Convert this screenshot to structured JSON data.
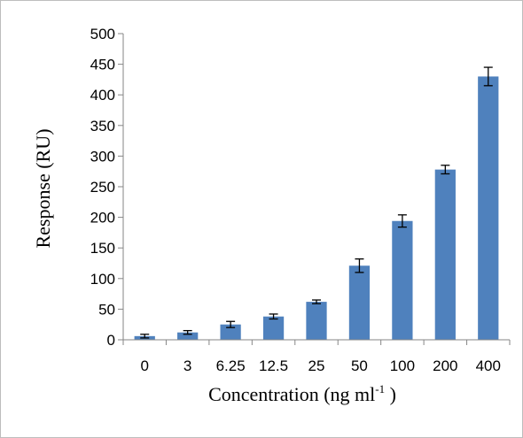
{
  "chart_data": {
    "type": "bar",
    "categories": [
      "0",
      "3",
      "6.25",
      "12.5",
      "25",
      "50",
      "100",
      "200",
      "400"
    ],
    "values": [
      6,
      12,
      25,
      38,
      62,
      121,
      194,
      278,
      430
    ],
    "errors": [
      3,
      3,
      5,
      4,
      3,
      11,
      10,
      7,
      15
    ],
    "xlabel": "Concentration (ng ml",
    "xlabel_superscript": "-1",
    "xlabel_suffix": " )",
    "ylabel": "Response (RU)",
    "ylim": [
      0,
      500
    ],
    "yticks": [
      0,
      50,
      100,
      150,
      200,
      250,
      300,
      350,
      400,
      450,
      500
    ],
    "bar_color": "#4f81bd",
    "grid": false,
    "legend": "none"
  }
}
